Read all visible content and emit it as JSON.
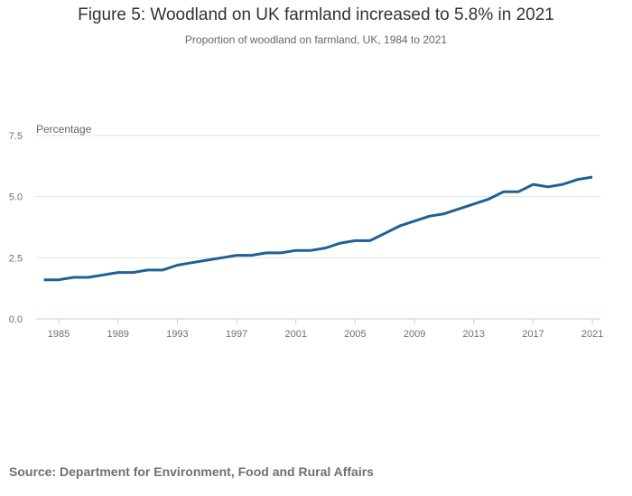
{
  "chart_data": {
    "type": "line",
    "title": "Figure 5: Woodland on UK farmland increased to 5.8% in 2021",
    "subtitle": "Proportion of woodland on farmland, UK, 1984 to 2021",
    "ylabel": "Percentage",
    "xlabel": "",
    "ylim": [
      0,
      7.5
    ],
    "xlim": [
      1984,
      2021
    ],
    "yticks": [
      "0.0",
      "2.5",
      "5.0",
      "7.5"
    ],
    "xticks": [
      "1985",
      "1989",
      "1993",
      "1997",
      "2001",
      "2005",
      "2009",
      "2013",
      "2017",
      "2021"
    ],
    "grid": true,
    "color": "#206095",
    "x": [
      1984,
      1985,
      1986,
      1987,
      1988,
      1989,
      1990,
      1991,
      1992,
      1993,
      1994,
      1995,
      1996,
      1997,
      1998,
      1999,
      2000,
      2001,
      2002,
      2003,
      2004,
      2005,
      2006,
      2007,
      2008,
      2009,
      2010,
      2011,
      2012,
      2013,
      2014,
      2015,
      2016,
      2017,
      2018,
      2019,
      2020,
      2021
    ],
    "series": [
      {
        "name": "Woodland on farmland",
        "values": [
          1.6,
          1.6,
          1.7,
          1.7,
          1.8,
          1.9,
          1.9,
          2.0,
          2.0,
          2.2,
          2.3,
          2.4,
          2.5,
          2.6,
          2.6,
          2.7,
          2.7,
          2.8,
          2.8,
          2.9,
          3.1,
          3.2,
          3.2,
          3.5,
          3.8,
          4.0,
          4.2,
          4.3,
          4.5,
          4.7,
          4.9,
          5.2,
          5.2,
          5.5,
          5.4,
          5.5,
          5.7,
          5.8
        ]
      }
    ]
  },
  "source": "Source: Department for Environment, Food and Rural Affairs"
}
